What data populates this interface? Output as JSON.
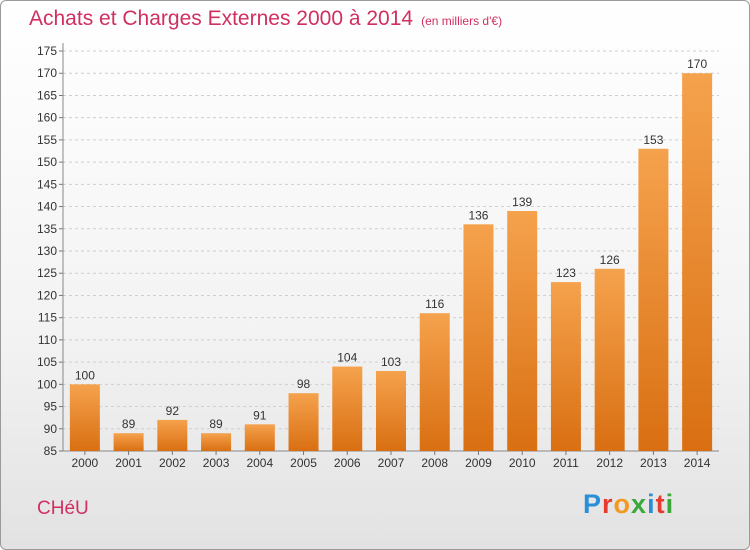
{
  "header": {
    "title": "Achats et Charges Externes 2000 à 2014",
    "unit": "(en milliers d'€)"
  },
  "footer": {
    "city": "CHéU",
    "brand": "Proxiti",
    "brand_colors": [
      "#2a8fd8",
      "#e63b2e",
      "#f29a1f",
      "#3aa83a",
      "#2a8fd8",
      "#e63b2e",
      "#3aa83a"
    ]
  },
  "colors": {
    "accent": "#d03060",
    "bar_top": "#f5a24d",
    "bar_bottom": "#d96f12",
    "grid": "#cfcfcf"
  },
  "chart_data": {
    "type": "bar",
    "title": "Achats et Charges Externes 2000 à 2014",
    "categories": [
      "2000",
      "2001",
      "2002",
      "2003",
      "2004",
      "2005",
      "2006",
      "2007",
      "2008",
      "2009",
      "2010",
      "2011",
      "2012",
      "2013",
      "2014"
    ],
    "values": [
      100,
      89,
      92,
      89,
      91,
      98,
      104,
      103,
      116,
      136,
      139,
      123,
      126,
      153,
      170
    ],
    "ylim": [
      85,
      175
    ],
    "yticks": [
      85,
      90,
      95,
      100,
      105,
      110,
      115,
      120,
      125,
      130,
      135,
      140,
      145,
      150,
      155,
      160,
      165,
      170,
      175
    ],
    "grid": true,
    "xlabel": "",
    "ylabel": ""
  }
}
